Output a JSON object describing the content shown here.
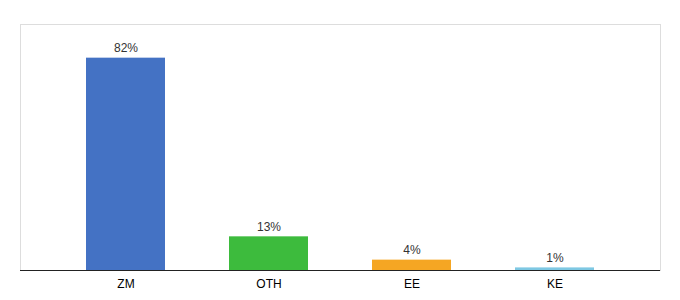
{
  "chart_data": {
    "type": "bar",
    "categories": [
      "ZM",
      "OTH",
      "EE",
      "KE"
    ],
    "values": [
      82,
      13,
      4,
      1
    ],
    "value_labels": [
      "82%",
      "13%",
      "4%",
      "1%"
    ],
    "colors": [
      "#4472c4",
      "#3dbb3d",
      "#f5a623",
      "#7ec8e3"
    ],
    "ylim": [
      0,
      95
    ],
    "data_labels": true,
    "tick_labels": "x",
    "grid": false
  }
}
